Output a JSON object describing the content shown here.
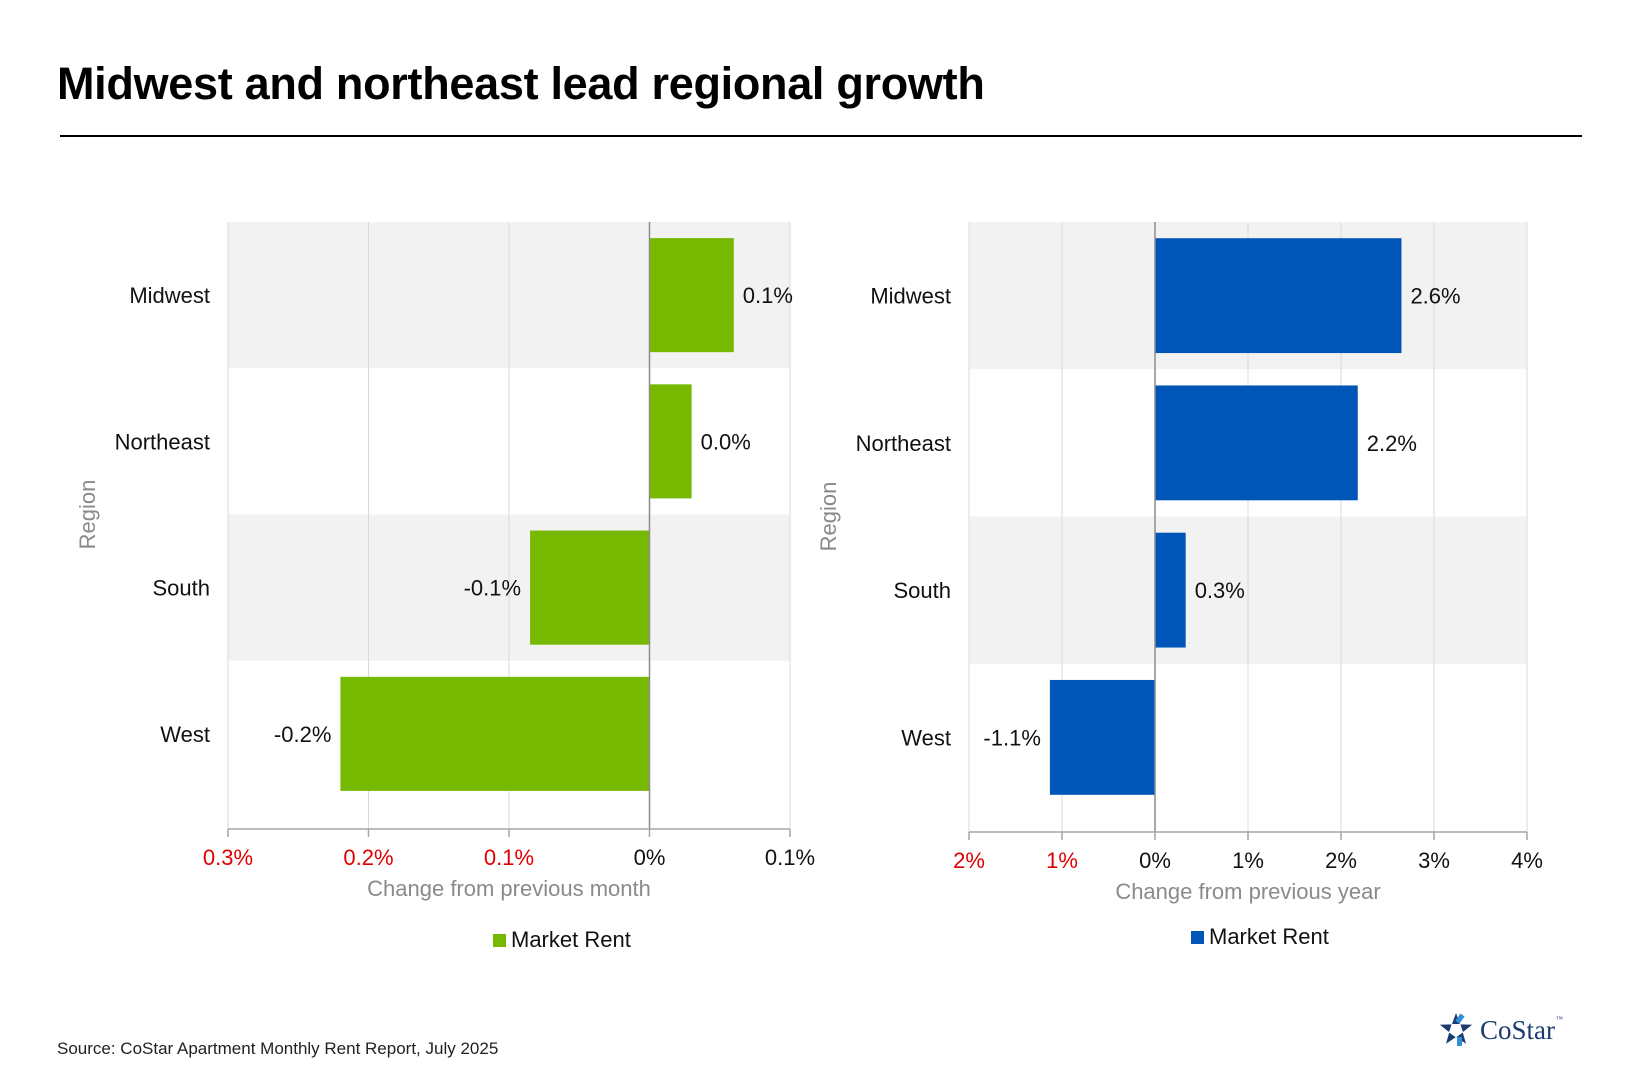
{
  "title": "Midwest and northeast lead regional growth",
  "source": "Source: CoStar Apartment Monthly Rent Report, July 2025",
  "logo": {
    "name": "CoStar",
    "tm": "™"
  },
  "colors": {
    "negative_tick": "#e00000",
    "axis_title": "#8a8a8a",
    "band": "#f2f2f2"
  },
  "chart_data": [
    {
      "type": "bar",
      "orientation": "horizontal",
      "categories": [
        "Midwest",
        "Northeast",
        "South",
        "West"
      ],
      "series": [
        {
          "name": "Market Rent",
          "color": "#77b900",
          "values": [
            0.06,
            0.03,
            -0.085,
            -0.22
          ]
        }
      ],
      "data_labels": [
        "0.1%",
        "0.0%",
        "-0.1%",
        "-0.2%"
      ],
      "xlim": [
        -0.3,
        0.1
      ],
      "xticks": [
        -0.3,
        -0.2,
        -0.1,
        0,
        0.1
      ],
      "xtick_labels": [
        "0.3%",
        "0.2%",
        "0.1%",
        "0%",
        "0.1%"
      ],
      "xlabel": "Change from previous month",
      "ylabel": "Region",
      "grid": "vertical",
      "legend": "bottom"
    },
    {
      "type": "bar",
      "orientation": "horizontal",
      "categories": [
        "Midwest",
        "Northeast",
        "South",
        "West"
      ],
      "series": [
        {
          "name": "Market Rent",
          "color": "#0055b8",
          "values": [
            2.65,
            2.18,
            0.33,
            -1.13
          ]
        }
      ],
      "data_labels": [
        "2.6%",
        "2.2%",
        "0.3%",
        "-1.1%"
      ],
      "xlim": [
        -2,
        4
      ],
      "xticks": [
        -2,
        -1,
        0,
        1,
        2,
        3,
        4
      ],
      "xtick_labels": [
        "2%",
        "1%",
        "0%",
        "1%",
        "2%",
        "3%",
        "4%"
      ],
      "xlabel": "Change from previous year",
      "ylabel": "Region",
      "grid": "vertical",
      "legend": "bottom"
    }
  ]
}
